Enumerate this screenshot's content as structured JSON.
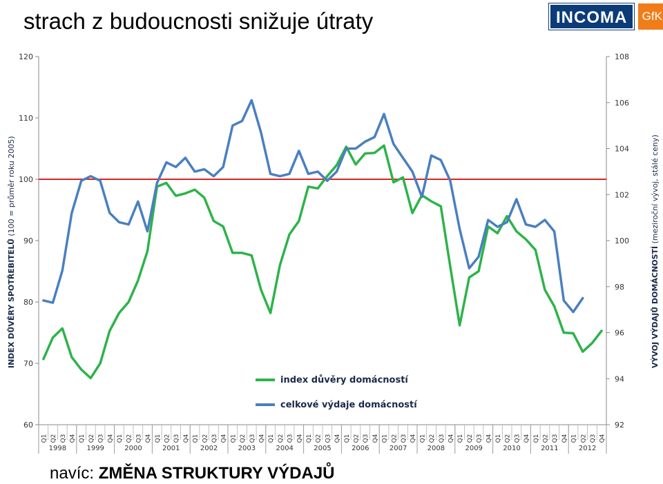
{
  "title": "strach z budoucnosti snižuje útraty",
  "footer": {
    "prefix": "navíc: ",
    "bold": "ZMĚNA STRUKTURY VÝDAJŮ"
  },
  "logo": {
    "main": "INCOMA",
    "partner": "GfK"
  },
  "colors": {
    "green": "#2db34a",
    "blue": "#4a7fbf",
    "red": "#e02020",
    "logo_blue": "#0b3b78",
    "logo_orange": "#f07d1a"
  },
  "chart_data": {
    "type": "line",
    "grid": false,
    "legend_position": "bottom-center",
    "left_axis": {
      "label_bold": "INDEX DŮVĚRY SPOTŘEBITELŮ",
      "label_normal": " (100 = průměr roku 2005)",
      "ylim": [
        60,
        120
      ],
      "ticks": [
        "60",
        "70",
        "80",
        "90",
        "100",
        "110",
        "120"
      ]
    },
    "right_axis": {
      "label_bold": "VÝVOJ VÝDAJŮ DOMÁCNOSTÍ",
      "label_normal": " (meziroční vývoj, stálé ceny)",
      "ylim": [
        92,
        108
      ],
      "ticks": [
        "92",
        "94",
        "96",
        "98",
        "100",
        "102",
        "104",
        "106",
        "108"
      ]
    },
    "quarters": [
      "Q1",
      "Q2",
      "Q3",
      "Q4"
    ],
    "years": [
      "1998",
      "1999",
      "2000",
      "2001",
      "2002",
      "2003",
      "2004",
      "2005",
      "2006",
      "2007",
      "2008",
      "2009",
      "2010",
      "2011",
      "2012"
    ],
    "reference_line": {
      "axis": "left",
      "value": 100
    },
    "series": [
      {
        "name": "index důvěry domácností",
        "axis": "left",
        "values": [
          70.7,
          74.2,
          75.7,
          71.0,
          69.0,
          67.6,
          70.0,
          75.3,
          78.2,
          80.0,
          83.5,
          88.3,
          98.8,
          99.4,
          97.3,
          97.7,
          98.3,
          97.0,
          93.2,
          92.3,
          88.0,
          88.0,
          87.6,
          82.0,
          78.2,
          86.0,
          91.0,
          93.2,
          98.8,
          98.5,
          100.5,
          102.3,
          105.3,
          102.4,
          104.2,
          104.3,
          105.5,
          99.5,
          100.3,
          94.5,
          97.4,
          96.4,
          95.6,
          85.8,
          76.2,
          84.0,
          85.0,
          92.3,
          91.2,
          94.0,
          91.5,
          90.2,
          88.5,
          82.0,
          79.3,
          75.0,
          74.9,
          71.9,
          73.3,
          75.3
        ]
      },
      {
        "name": "celkové výdaje domácností",
        "axis": "right",
        "values": [
          97.4,
          97.3,
          98.7,
          101.2,
          102.6,
          102.8,
          102.6,
          101.2,
          100.8,
          100.7,
          101.7,
          100.4,
          102.5,
          103.4,
          103.2,
          103.6,
          103.0,
          103.1,
          102.8,
          103.2,
          105.0,
          105.2,
          106.1,
          104.7,
          102.9,
          102.8,
          102.9,
          103.9,
          102.9,
          103.0,
          102.6,
          103.0,
          104.0,
          104.0,
          104.3,
          104.5,
          105.5,
          104.2,
          103.6,
          103.0,
          101.9,
          103.7,
          103.5,
          102.6,
          100.5,
          98.8,
          99.3,
          100.9,
          100.6,
          100.8,
          101.8,
          100.7,
          100.6,
          100.9,
          100.4,
          97.4,
          96.9,
          97.5
        ]
      }
    ]
  }
}
